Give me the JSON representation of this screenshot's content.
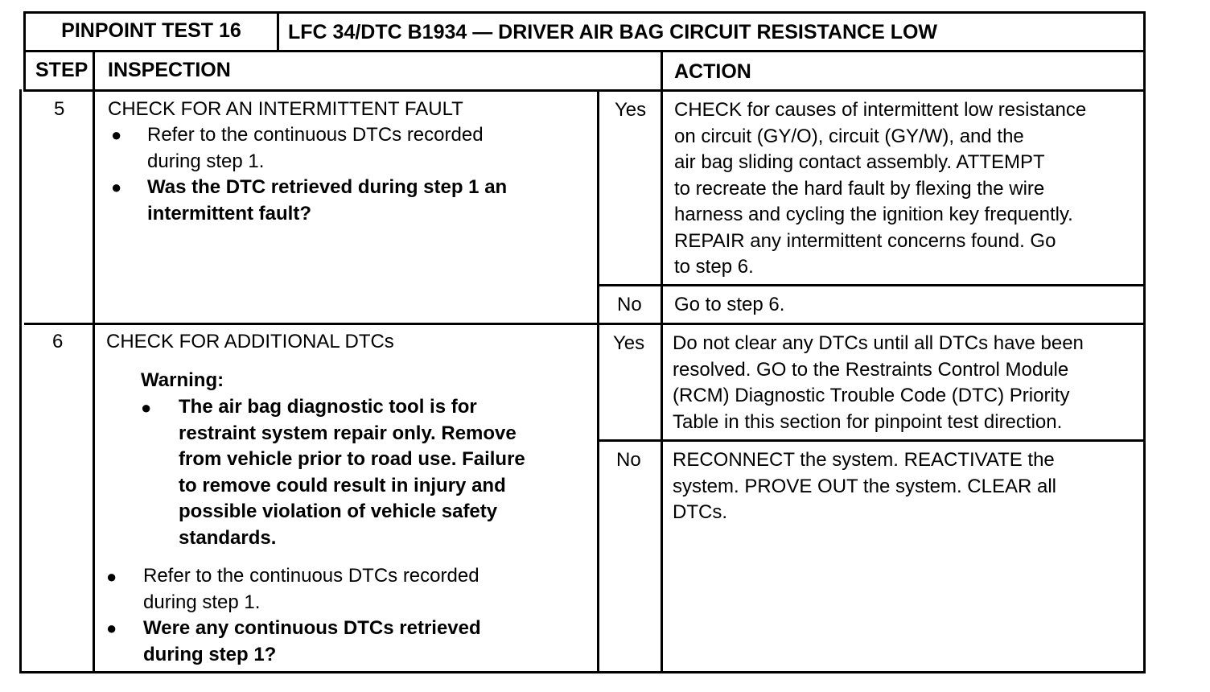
{
  "header": {
    "test_label": "PINPOINT TEST 16",
    "title": "LFC 34/DTC B1934 — DRIVER AIR BAG CIRCUIT RESISTANCE LOW"
  },
  "columns": {
    "step": "STEP",
    "inspection": "INSPECTION",
    "action": "ACTION"
  },
  "steps": [
    {
      "number": "5",
      "heading": "CHECK FOR AN INTERMITTENT FAULT",
      "bullets": [
        {
          "lines": [
            "Refer to the continuous DTCs recorded",
            "during step 1."
          ]
        },
        {
          "lines": [
            "Was the DTC retrieved during step 1 an",
            "intermittent fault?"
          ]
        }
      ],
      "yes": {
        "label": "Yes",
        "lines": [
          "CHECK for causes of intermittent low resistance",
          "on circuit (GY/O), circuit (GY/W), and the",
          "air bag sliding contact assembly.  ATTEMPT",
          "to recreate the hard fault by flexing the wire",
          "harness and cycling the ignition key frequently.",
          "REPAIR any intermittent concerns found.  Go",
          "to step 6."
        ]
      },
      "no": {
        "label": "No",
        "lines": [
          "Go to step 6."
        ]
      }
    },
    {
      "number": "6",
      "heading": "CHECK FOR ADDITIONAL DTCs",
      "warning_label": "Warning:",
      "warning_lines": [
        "The air bag diagnostic tool is for",
        "restraint system repair only. Remove",
        "from vehicle prior to road use. Failure",
        "to remove could result in injury and",
        "possible violation of vehicle safety",
        "standards."
      ],
      "bullets": [
        {
          "lines": [
            "Refer to the continuous DTCs recorded",
            "during step 1."
          ]
        },
        {
          "lines": [
            "Were any continuous DTCs retrieved",
            "during step 1?"
          ]
        }
      ],
      "yes": {
        "label": "Yes",
        "lines": [
          "Do not clear any DTCs until all DTCs have been",
          "resolved. GO to the Restraints Control Module",
          "(RCM) Diagnostic Trouble Code (DTC) Priority",
          "Table in this section for pinpoint test direction."
        ]
      },
      "no": {
        "label": "No",
        "lines": [
          "RECONNECT the system.  REACTIVATE the",
          "system.  PROVE OUT the system.  CLEAR all",
          "DTCs."
        ]
      }
    }
  ]
}
